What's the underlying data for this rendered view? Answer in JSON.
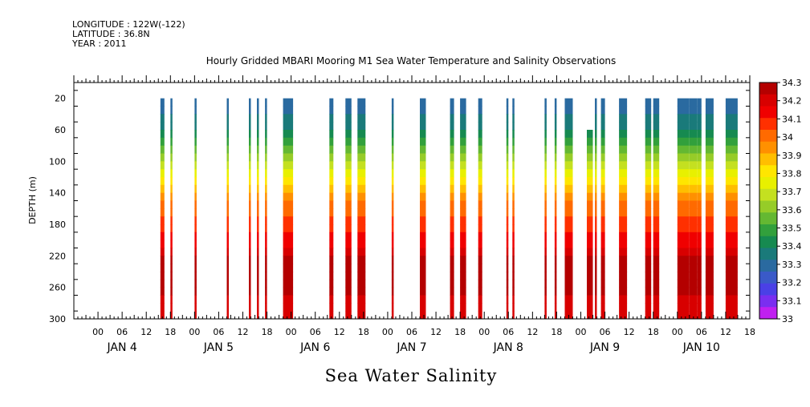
{
  "header": {
    "longitude": "LONGITUDE : 122W(-122)",
    "latitude": "LATITUDE : 36.8N",
    "year": "YEAR : 2011"
  },
  "chart_data": {
    "type": "heatmap",
    "title": "Hourly Gridded MBARI Mooring M1 Sea Water Temperature and Salinity Observations",
    "ylabel": "DEPTH (m)",
    "bottom_label": "Sea Water Salinity",
    "ylim": [
      300,
      0
    ],
    "xlim_hours": [
      -6,
      162
    ],
    "y_ticks": [
      "20",
      "60",
      "100",
      "140",
      "180",
      "220",
      "260",
      "300"
    ],
    "y_tick_values": [
      20,
      60,
      100,
      140,
      180,
      220,
      260,
      300
    ],
    "x_tick_labels": [
      "00",
      "06",
      "12",
      "18",
      "00",
      "06",
      "12",
      "18",
      "00",
      "06",
      "12",
      "18",
      "00",
      "06",
      "12",
      "18",
      "00",
      "06",
      "12",
      "18",
      "00",
      "06",
      "12",
      "18",
      "00",
      "06",
      "12",
      "18"
    ],
    "day_labels": [
      "JAN  4",
      "JAN  5",
      "JAN  6",
      "JAN  7",
      "JAN  8",
      "JAN  9",
      "JAN 10"
    ],
    "colorbar": {
      "labels": [
        "34.3",
        "34.2",
        "34.1",
        "34",
        "33.9",
        "33.8",
        "33.7",
        "33.6",
        "33.5",
        "33.4",
        "33.3",
        "33.2",
        "33.1",
        "33"
      ],
      "values": [
        34.3,
        34.2,
        34.1,
        34.0,
        33.9,
        33.8,
        33.7,
        33.6,
        33.5,
        33.4,
        33.3,
        33.2,
        33.1,
        33.0
      ],
      "colors": [
        "#b40000",
        "#d80000",
        "#f00000",
        "#ff3000",
        "#ff6a00",
        "#ff9000",
        "#ffbe00",
        "#ffe600",
        "#e8f000",
        "#c4e020",
        "#96cc28",
        "#64b832",
        "#32a03c",
        "#168a50",
        "#1a7a7a",
        "#2a6aa0",
        "#3a5ac8",
        "#4a40e6",
        "#7a2ef0",
        "#c020f0"
      ]
    },
    "profile_salinity": [
      33.3,
      33.3,
      33.32,
      33.34,
      33.38,
      33.43,
      33.5,
      33.57,
      33.64,
      33.72,
      33.8,
      33.88,
      33.93,
      33.98,
      34.02,
      34.05,
      34.08,
      34.12,
      34.15,
      34.18,
      34.22,
      34.25,
      34.28,
      34.31,
      34.31,
      34.26,
      34.2,
      34.2,
      34.2
    ],
    "profile_depths": [
      20,
      30,
      40,
      50,
      60,
      70,
      80,
      90,
      100,
      110,
      120,
      130,
      140,
      150,
      160,
      170,
      180,
      190,
      200,
      210,
      220,
      230,
      240,
      250,
      260,
      270,
      280,
      290,
      300
    ],
    "data_segments_hours": [
      {
        "start": 15.5,
        "end": 16.5,
        "top": 20
      },
      {
        "start": 18.0,
        "end": 18.5,
        "top": 20
      },
      {
        "start": 24.0,
        "end": 24.5,
        "top": 20
      },
      {
        "start": 32.0,
        "end": 32.5,
        "top": 20
      },
      {
        "start": 37.5,
        "end": 38.0,
        "top": 20
      },
      {
        "start": 39.5,
        "end": 40.0,
        "top": 20
      },
      {
        "start": 41.5,
        "end": 42.0,
        "top": 20
      },
      {
        "start": 46.0,
        "end": 48.5,
        "top": 20
      },
      {
        "start": 57.5,
        "end": 58.5,
        "top": 20
      },
      {
        "start": 61.5,
        "end": 63.0,
        "top": 20
      },
      {
        "start": 64.5,
        "end": 66.5,
        "top": 20
      },
      {
        "start": 73.0,
        "end": 73.5,
        "top": 20
      },
      {
        "start": 80.0,
        "end": 81.5,
        "top": 20
      },
      {
        "start": 87.5,
        "end": 88.5,
        "top": 20
      },
      {
        "start": 90.0,
        "end": 91.5,
        "top": 20
      },
      {
        "start": 94.5,
        "end": 95.5,
        "top": 20
      },
      {
        "start": 101.5,
        "end": 102.0,
        "top": 20
      },
      {
        "start": 103.0,
        "end": 103.5,
        "top": 20
      },
      {
        "start": 111.0,
        "end": 111.5,
        "top": 20
      },
      {
        "start": 113.5,
        "end": 114.0,
        "top": 20
      },
      {
        "start": 116.0,
        "end": 118.0,
        "top": 20
      },
      {
        "start": 121.5,
        "end": 122.0,
        "top": 60
      },
      {
        "start": 122.0,
        "end": 123.0,
        "top": 60
      },
      {
        "start": 123.5,
        "end": 124.0,
        "top": 20
      },
      {
        "start": 125.0,
        "end": 126.0,
        "top": 20
      },
      {
        "start": 129.5,
        "end": 131.5,
        "top": 20
      },
      {
        "start": 136.0,
        "end": 137.5,
        "top": 20
      },
      {
        "start": 138.0,
        "end": 139.5,
        "top": 20
      },
      {
        "start": 144.0,
        "end": 147.0,
        "top": 20
      },
      {
        "start": 147.0,
        "end": 149.0,
        "top": 20
      },
      {
        "start": 149.0,
        "end": 150.0,
        "top": 20
      },
      {
        "start": 151.0,
        "end": 153.0,
        "top": 20
      },
      {
        "start": 156.0,
        "end": 159.0,
        "top": 20
      }
    ]
  }
}
